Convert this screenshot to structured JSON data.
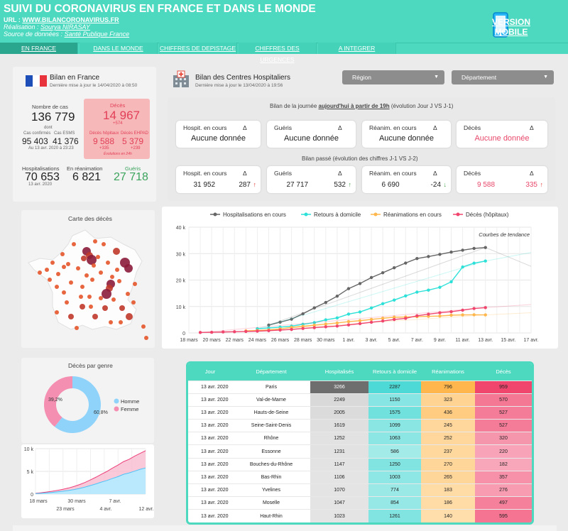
{
  "header": {
    "title": "SUIVI DU CORONAVIRUS EN FRANCE ET DANS LE MONDE",
    "url_label": "URL : ",
    "url": "WWW.BILANCORONAVIRUS.FR",
    "author_label": "Réalisation : ",
    "author": "Sourya NIRASAY",
    "source_label": "Source de données : ",
    "source": "Santé Publique France",
    "mobile_line1": "VERSION",
    "mobile_line2": "MOBILE"
  },
  "nav": [
    "EN FRANCE",
    "DANS LE MONDE",
    "CHIFFRES DE DEPISTAGE",
    "CHIFFRES DES URGENCES",
    "A INTEGRER"
  ],
  "bilan": {
    "title": "Bilan en France",
    "updated": "Dernière mise à jour le 14/04/2020 à 08:50",
    "cases_label": "Nombre de cas",
    "cases": "136 779",
    "dont": "dont",
    "confirmed_label": "Cas confirmés",
    "confirmed": "95 403",
    "esms_label": "Cas ESMS",
    "esms": "41 376",
    "esms_date": "Au 13 avr. 2020 à 23:23",
    "deaths_label": "Décès",
    "deaths": "14 967",
    "deaths_delta": "+574",
    "hosp_deaths_label": "Décès hôpitaux",
    "hosp_deaths": "9 588",
    "hosp_deaths_delta": "+335",
    "ehpad_label": "Décès EHPAD",
    "ehpad": "5 379",
    "ehpad_delta": "+239",
    "evol": "Évolutions en 24h",
    "hosp_label": "Hospitalisations",
    "hosp": "70 653",
    "hosp_date": "13 avr. 2020",
    "rea_label": "En réanimation",
    "rea": "6 821",
    "healed_label": "Guéris",
    "healed": "27 718"
  },
  "centres": {
    "title": "Bilan des Centres Hospitaliers",
    "updated": "Dernière mise à jour le 13/04/2020 à 19:56",
    "region": "Région",
    "departement": "Département",
    "day_prefix": "Bilan de la journée ",
    "day_link": "aujourd'hui à partir de 19h",
    "day_suffix": " (évolution Jour J VS J-1)",
    "past": "Bilan passé (évolution des chiffres J-1 VS J-2)",
    "delta": "Δ",
    "today": [
      {
        "label": "Hospit. en cours",
        "value": "Aucune donnée"
      },
      {
        "label": "Guéris",
        "value": "Aucune donnée"
      },
      {
        "label": "Réanim. en cours",
        "value": "Aucune donnée"
      },
      {
        "label": "Décès",
        "value": "Aucune donnée"
      }
    ],
    "past_cards": [
      {
        "label": "Hospit. en cours",
        "value": "31 952",
        "delta": "287",
        "arrow": "↑"
      },
      {
        "label": "Guéris",
        "value": "27 717",
        "delta": "532",
        "arrow": "↑"
      },
      {
        "label": "Réanim. en cours",
        "value": "6 690",
        "delta": "-24",
        "arrow": "↓"
      },
      {
        "label": "Décès",
        "value": "9 588",
        "delta": "335",
        "arrow": "↑"
      }
    ]
  },
  "map": {
    "title": "Carte des décès"
  },
  "gender": {
    "title": "Décès par genre",
    "homme": "Homme",
    "femme": "Femme",
    "homme_pct": "60,8%",
    "femme_pct": "39,2%"
  },
  "chart_data": [
    {
      "type": "line",
      "legend": [
        "Hospitalisations en cours",
        "Retours à domicile",
        "Réanimations en cours",
        "Décès (hôpitaux)"
      ],
      "annotation": "Courbes de tendance",
      "ylim": [
        0,
        40000
      ],
      "yticks": [
        "0",
        "10 k",
        "20 k",
        "30 k",
        "40 k"
      ],
      "xticks": [
        "18 mars",
        "20 mars",
        "22 mars",
        "24 mars",
        "26 mars",
        "28 mars",
        "30 mars",
        "1 avr.",
        "3 avr.",
        "5 avr.",
        "7 avr.",
        "9 avr.",
        "11 avr.",
        "13 avr.",
        "15 avr.",
        "17 avr."
      ],
      "series": [
        {
          "name": "Hospitalisations en cours",
          "color": "#666666",
          "values": [
            2972,
            4073,
            5226,
            7240,
            9484,
            11539,
            13904,
            16760,
            18681,
            20946,
            22757,
            24639,
            26432,
            28142,
            28891,
            29722,
            30584,
            31305,
            31952,
            32292
          ]
        },
        {
          "name": "Retours à domicile",
          "color": "#2de0d8",
          "values": [
            1587,
            1893,
            2200,
            2567,
            3281,
            3900,
            4948,
            5700,
            7132,
            7927,
            9444,
            11053,
            12428,
            14008,
            15438,
            16183,
            17250,
            19337,
            24932,
            26391,
            27186
          ]
        },
        {
          "name": "Réanimations en cours",
          "color": "#ffb74d",
          "values": [
            771,
            931,
            1122,
            1525,
            2082,
            2516,
            2935,
            3375,
            3787,
            4273,
            4632,
            5107,
            5565,
            5940,
            6017,
            6148,
            6305,
            6399,
            6714,
            6838,
            6873,
            6821
          ]
        },
        {
          "name": "Décès (hôpitaux)",
          "color": "#f0466e",
          "values": [
            175,
            244,
            372,
            450,
            562,
            674,
            860,
            1100,
            1331,
            1696,
            1995,
            2314,
            2606,
            3024,
            3523,
            4032,
            4503,
            5091,
            5532,
            6494,
            7091,
            7632,
            8044,
            8598,
            9253,
            9588
          ]
        }
      ]
    },
    {
      "type": "area",
      "yticks": [
        "0",
        "5 k",
        "10 k"
      ],
      "ylim": [
        0,
        10000
      ],
      "xticks_top": [
        "18 mars",
        "30 mars",
        "7 avr."
      ],
      "xticks_bottom": [
        "23 mars",
        "4 avr.",
        "12 avr."
      ],
      "series": [
        {
          "name": "Homme",
          "values": [
            110,
            180,
            280,
            380,
            500,
            640,
            800,
            1000,
            1250,
            1550,
            1900,
            2250,
            2650,
            3000,
            3450,
            3850,
            4350,
            4650,
            5050,
            5450,
            5750
          ]
        },
        {
          "name": "Femme",
          "values": [
            70,
            120,
            170,
            240,
            330,
            420,
            540,
            680,
            840,
            1020,
            1240,
            1480,
            1740,
            2000,
            2280,
            2540,
            2800,
            3000,
            3300,
            3500,
            3800
          ]
        }
      ]
    }
  ],
  "table": {
    "headers": [
      "Jour",
      "Département",
      "Hospitalisés",
      "Retours à domicile",
      "Réanimations",
      "Décès"
    ],
    "rows": [
      [
        "13 avr. 2020",
        "Paris",
        "3266",
        "2287",
        "796",
        "959"
      ],
      [
        "13 avr. 2020",
        "Val-de-Marne",
        "2249",
        "1150",
        "323",
        "570"
      ],
      [
        "13 avr. 2020",
        "Hauts-de-Seine",
        "2005",
        "1575",
        "436",
        "527"
      ],
      [
        "13 avr. 2020",
        "Seine-Saint-Denis",
        "1619",
        "1099",
        "245",
        "527"
      ],
      [
        "13 avr. 2020",
        "Rhône",
        "1252",
        "1063",
        "252",
        "320"
      ],
      [
        "13 avr. 2020",
        "Essonne",
        "1231",
        "586",
        "237",
        "220"
      ],
      [
        "13 avr. 2020",
        "Bouches-du-Rhône",
        "1147",
        "1250",
        "270",
        "182"
      ],
      [
        "13 avr. 2020",
        "Bas-Rhin",
        "1106",
        "1003",
        "265",
        "357"
      ],
      [
        "13 avr. 2020",
        "Yvelines",
        "1070",
        "774",
        "183",
        "276"
      ],
      [
        "13 avr. 2020",
        "Moselle",
        "1047",
        "854",
        "186",
        "497"
      ],
      [
        "13 avr. 2020",
        "Haut-Rhin",
        "1023",
        "1261",
        "140",
        "595"
      ]
    ]
  }
}
